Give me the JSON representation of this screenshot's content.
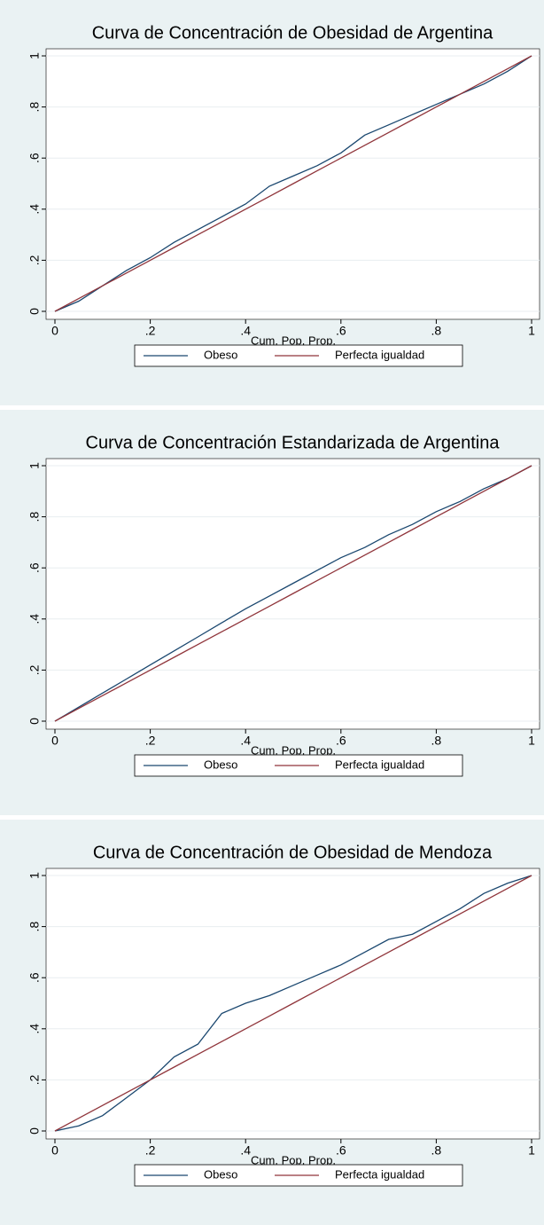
{
  "chart_data": [
    {
      "type": "line",
      "title": "Curva de Concentración de Obesidad de Argentina",
      "xlabel": "Cum. Pop. Prop.",
      "x": [
        0,
        0.05,
        0.1,
        0.15,
        0.2,
        0.25,
        0.3,
        0.35,
        0.4,
        0.45,
        0.5,
        0.55,
        0.6,
        0.65,
        0.7,
        0.75,
        0.8,
        0.85,
        0.9,
        0.95,
        1
      ],
      "series": [
        {
          "name": "Obeso",
          "color": "#1a476f",
          "values": [
            0,
            0.04,
            0.1,
            0.16,
            0.21,
            0.27,
            0.32,
            0.37,
            0.42,
            0.49,
            0.53,
            0.57,
            0.62,
            0.69,
            0.73,
            0.77,
            0.81,
            0.85,
            0.89,
            0.94,
            1
          ]
        },
        {
          "name": "Perfecta igualdad",
          "color": "#90353b",
          "values": [
            0,
            0.05,
            0.1,
            0.15,
            0.2,
            0.25,
            0.3,
            0.35,
            0.4,
            0.45,
            0.5,
            0.55,
            0.6,
            0.65,
            0.7,
            0.75,
            0.8,
            0.85,
            0.9,
            0.95,
            1
          ]
        }
      ],
      "xlim": [
        0,
        1
      ],
      "ylim": [
        0,
        1
      ],
      "xticks": [
        0,
        {
          "value": 0.2,
          "label": ".2"
        },
        {
          "value": 0.4,
          "label": ".4"
        },
        {
          "value": 0.6,
          "label": ".6"
        },
        {
          "value": 0.8,
          "label": ".8"
        },
        1
      ],
      "yticks": [
        0,
        {
          "value": 0.2,
          "label": ".2"
        },
        {
          "value": 0.4,
          "label": ".4"
        },
        {
          "value": 0.6,
          "label": ".6"
        },
        {
          "value": 0.8,
          "label": ".8"
        },
        1
      ],
      "grid": true,
      "legend": "bottom"
    },
    {
      "type": "line",
      "title": "Curva de Concentración Estandarizada de Argentina",
      "xlabel": "Cum. Pop. Prop.",
      "x": [
        0,
        0.05,
        0.1,
        0.15,
        0.2,
        0.25,
        0.3,
        0.35,
        0.4,
        0.45,
        0.5,
        0.55,
        0.6,
        0.65,
        0.7,
        0.75,
        0.8,
        0.85,
        0.9,
        0.95,
        1
      ],
      "series": [
        {
          "name": "Obeso",
          "color": "#1a476f",
          "values": [
            0,
            0.055,
            0.11,
            0.165,
            0.22,
            0.275,
            0.33,
            0.385,
            0.44,
            0.49,
            0.54,
            0.59,
            0.64,
            0.68,
            0.73,
            0.77,
            0.82,
            0.86,
            0.91,
            0.95,
            1
          ]
        },
        {
          "name": "Perfecta igualdad",
          "color": "#90353b",
          "values": [
            0,
            0.05,
            0.1,
            0.15,
            0.2,
            0.25,
            0.3,
            0.35,
            0.4,
            0.45,
            0.5,
            0.55,
            0.6,
            0.65,
            0.7,
            0.75,
            0.8,
            0.85,
            0.9,
            0.95,
            1
          ]
        }
      ],
      "xlim": [
        0,
        1
      ],
      "ylim": [
        0,
        1
      ],
      "xticks": [
        0,
        {
          "value": 0.2,
          "label": ".2"
        },
        {
          "value": 0.4,
          "label": ".4"
        },
        {
          "value": 0.6,
          "label": ".6"
        },
        {
          "value": 0.8,
          "label": ".8"
        },
        1
      ],
      "yticks": [
        0,
        {
          "value": 0.2,
          "label": ".2"
        },
        {
          "value": 0.4,
          "label": ".4"
        },
        {
          "value": 0.6,
          "label": ".6"
        },
        {
          "value": 0.8,
          "label": ".8"
        },
        1
      ],
      "grid": true,
      "legend": "bottom"
    },
    {
      "type": "line",
      "title": "Curva de Concentración de Obesidad de Mendoza",
      "xlabel": "Cum. Pop. Prop.",
      "x": [
        0,
        0.05,
        0.1,
        0.15,
        0.2,
        0.25,
        0.3,
        0.35,
        0.4,
        0.45,
        0.5,
        0.55,
        0.6,
        0.65,
        0.7,
        0.75,
        0.8,
        0.85,
        0.9,
        0.95,
        1
      ],
      "series": [
        {
          "name": "Obeso",
          "color": "#1a476f",
          "values": [
            0,
            0.02,
            0.06,
            0.13,
            0.2,
            0.29,
            0.34,
            0.46,
            0.5,
            0.53,
            0.57,
            0.61,
            0.65,
            0.7,
            0.75,
            0.77,
            0.82,
            0.87,
            0.93,
            0.97,
            1
          ]
        },
        {
          "name": "Perfecta igualdad",
          "color": "#90353b",
          "values": [
            0,
            0.05,
            0.1,
            0.15,
            0.2,
            0.25,
            0.3,
            0.35,
            0.4,
            0.45,
            0.5,
            0.55,
            0.6,
            0.65,
            0.7,
            0.75,
            0.8,
            0.85,
            0.9,
            0.95,
            1
          ]
        }
      ],
      "xlim": [
        0,
        1
      ],
      "ylim": [
        0,
        1
      ],
      "xticks": [
        0,
        {
          "value": 0.2,
          "label": ".2"
        },
        {
          "value": 0.4,
          "label": ".4"
        },
        {
          "value": 0.6,
          "label": ".6"
        },
        {
          "value": 0.8,
          "label": ".8"
        },
        1
      ],
      "yticks": [
        0,
        {
          "value": 0.2,
          "label": ".2"
        },
        {
          "value": 0.4,
          "label": ".4"
        },
        {
          "value": 0.6,
          "label": ".6"
        },
        {
          "value": 0.8,
          "label": ".8"
        },
        1
      ],
      "grid": true,
      "legend": "bottom"
    }
  ]
}
